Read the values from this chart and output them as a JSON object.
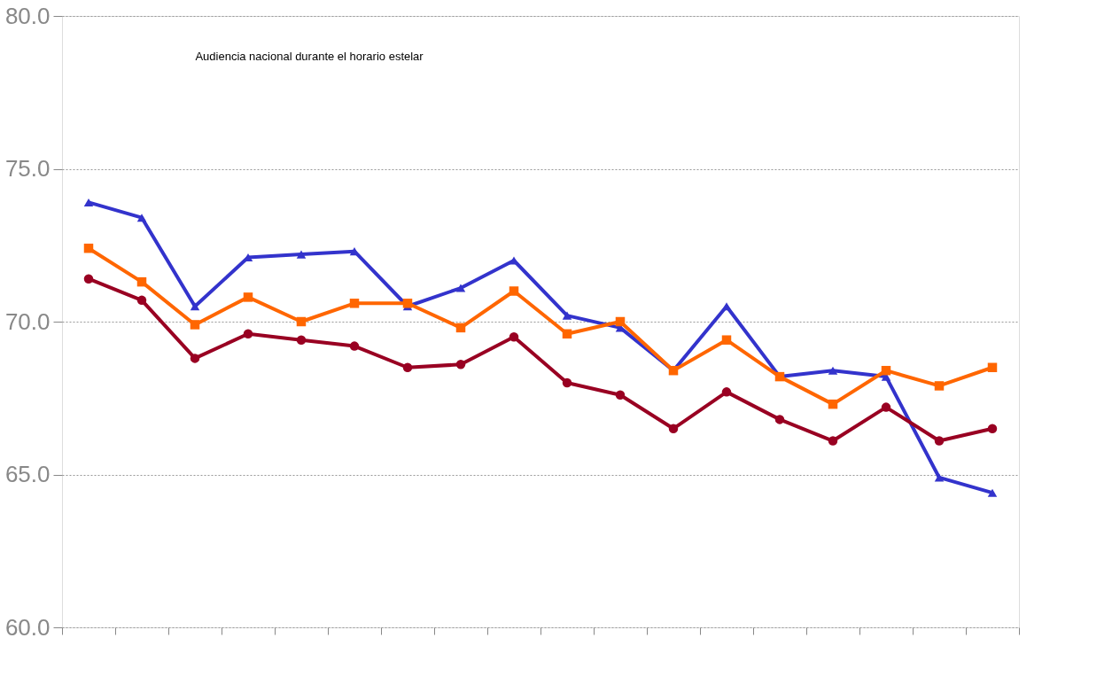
{
  "chart_data": {
    "type": "line",
    "title": "Audiencia nacional durante el horario estelar",
    "categories": [
      null,
      null,
      null,
      null,
      null,
      null,
      null,
      null,
      null,
      null,
      null,
      null,
      null,
      null,
      null,
      null,
      null,
      null
    ],
    "series": [
      {
        "color": "#3333cc",
        "marker": "triangle",
        "values": [
          73.9,
          73.4,
          70.5,
          72.1,
          72.2,
          72.3,
          70.5,
          71.1,
          72.0,
          70.2,
          69.8,
          68.4,
          70.5,
          68.2,
          68.4,
          68.2,
          64.9,
          64.4
        ]
      },
      {
        "color": "#ff6600",
        "marker": "square",
        "values": [
          72.4,
          71.3,
          69.9,
          70.8,
          70.0,
          70.6,
          70.6,
          69.8,
          71.0,
          69.6,
          70.0,
          68.4,
          69.4,
          68.2,
          67.3,
          68.4,
          67.9,
          68.5
        ]
      },
      {
        "color": "#990022",
        "marker": "circle",
        "values": [
          71.4,
          70.7,
          68.8,
          69.6,
          69.4,
          69.2,
          68.5,
          68.6,
          69.5,
          68.0,
          67.6,
          66.5,
          67.7,
          66.8,
          66.1,
          67.2,
          66.1,
          66.5
        ]
      }
    ],
    "ylim": [
      60,
      80
    ],
    "yticks": [
      {
        "value": 60,
        "label": "60.0"
      },
      {
        "value": 65,
        "label": "65.0"
      },
      {
        "value": 70,
        "label": "70.0"
      },
      {
        "value": 75,
        "label": "75.0"
      },
      {
        "value": 80,
        "label": "80.0"
      }
    ],
    "tick_labels": "y",
    "grid": "y",
    "line_style": "solid"
  }
}
